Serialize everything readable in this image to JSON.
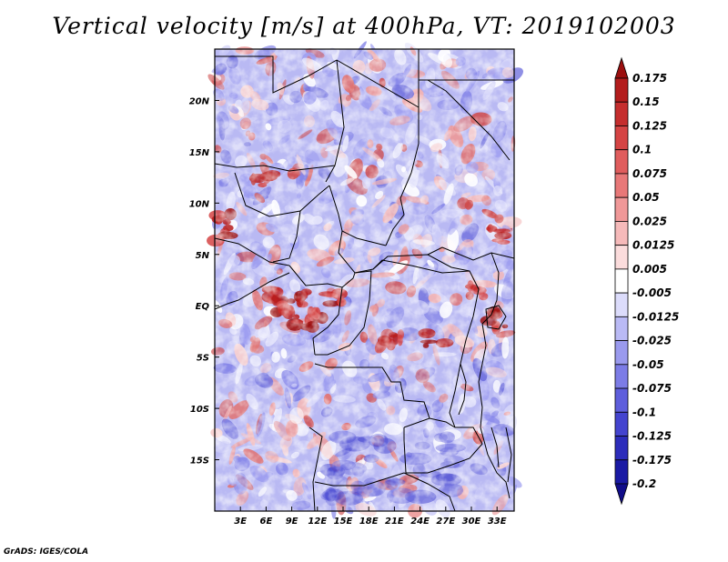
{
  "title": "Vertical velocity [m/s] at 400hPa, VT: 2019102003",
  "footer": "GrADS: IGES/COLA",
  "map": {
    "lat_ticks": [
      "20N",
      "15N",
      "10N",
      "5N",
      "EQ",
      "5S",
      "10S",
      "15S"
    ],
    "lat_values": [
      20,
      15,
      10,
      5,
      0,
      -5,
      -10,
      -15
    ],
    "lon_ticks": [
      "3E",
      "6E",
      "9E",
      "12E",
      "15E",
      "18E",
      "21E",
      "24E",
      "27E",
      "30E",
      "33E"
    ],
    "lon_values": [
      3,
      6,
      9,
      12,
      15,
      18,
      21,
      24,
      27,
      30,
      33
    ],
    "lat_range": [
      -20,
      25
    ],
    "lon_range": [
      0,
      35
    ]
  },
  "colorbar": {
    "labels": [
      "0.175",
      "0.15",
      "0.125",
      "0.1",
      "0.075",
      "0.05",
      "0.025",
      "0.0125",
      "0.005",
      "-0.005",
      "-0.0125",
      "-0.025",
      "-0.05",
      "-0.075",
      "-0.1",
      "-0.125",
      "-0.175",
      "-0.2"
    ],
    "colors": [
      "#9b0f0f",
      "#b31d1d",
      "#c52e2e",
      "#d54444",
      "#e05d5d",
      "#e87878",
      "#f09898",
      "#f6baba",
      "#fbdcdc",
      "#ffffff",
      "#dcdcfb",
      "#babaf5",
      "#9a9aee",
      "#7c7ce6",
      "#5e5edc",
      "#4444cf",
      "#2d2dbb",
      "#1a1aa4",
      "#110d8a"
    ]
  },
  "colors": {
    "positive": "#c62828",
    "negative": "#3f3fd0",
    "border": "#000000"
  }
}
